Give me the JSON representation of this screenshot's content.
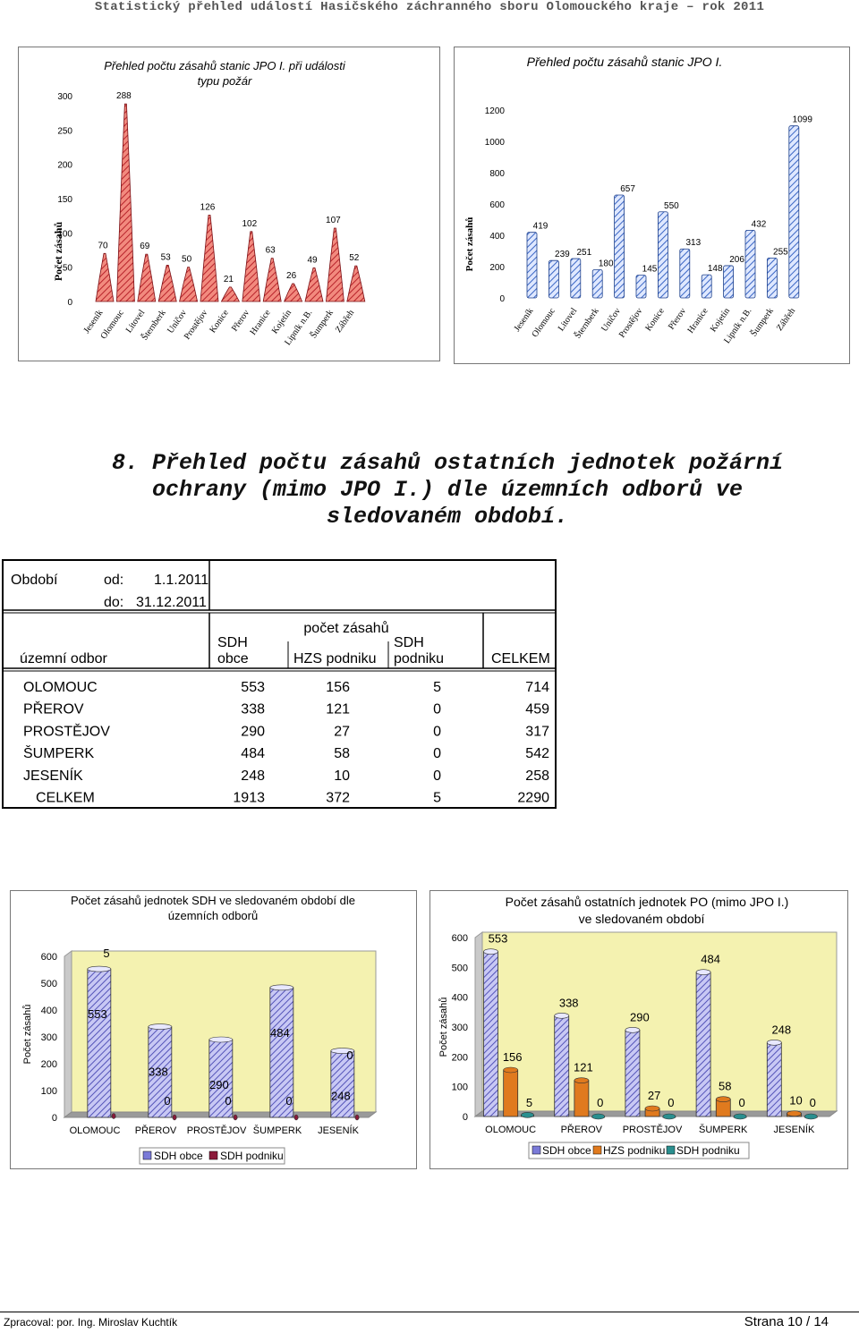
{
  "header": {
    "title": "Statistický přehled událostí Hasičského záchranného sboru Olomouckého kraje – rok 2011"
  },
  "chart1": {
    "title_line1": "Přehled počtu zásahů stanic JPO I. při události",
    "title_line2": "typu požár",
    "ylabel": "Počet zásahů",
    "chart_data": {
      "type": "bar",
      "title": "Přehled počtu zásahů stanic JPO I. při události typu požár",
      "ylabel": "Počet zásahů",
      "categories": [
        "Jeseník",
        "Olomouc",
        "Litovel",
        "Šternberk",
        "Uničov",
        "Prostějov",
        "Konice",
        "Přerov",
        "Hranice",
        "Kojetín",
        "Lipník n.B.",
        "Šumperk",
        "Zábřeh"
      ],
      "values": [
        70,
        288,
        69,
        53,
        50,
        126,
        21,
        102,
        63,
        26,
        49,
        107,
        52
      ],
      "ylim": [
        0,
        300
      ],
      "yticks": [
        0,
        50,
        100,
        150,
        200,
        250,
        300
      ]
    }
  },
  "chart2": {
    "title": "Přehled počtu zásahů stanic JPO I.",
    "ylabel": "Počet zásahů",
    "chart_data": {
      "type": "bar",
      "title": "Přehled počtu zásahů stanic JPO I.",
      "ylabel": "Počet zásahů",
      "categories": [
        "Jeseník",
        "Olomouc",
        "Litovel",
        "Šternberk",
        "Uničov",
        "Prostějov",
        "Konice",
        "Přerov",
        "Hranice",
        "Kojetín",
        "Lipník n.B.",
        "Šumperk",
        "Zábřeh"
      ],
      "values": [
        419,
        239,
        251,
        180,
        657,
        145,
        550,
        313,
        148,
        206,
        432,
        255,
        1099
      ],
      "ylim": [
        0,
        1200
      ],
      "yticks": [
        0,
        200,
        400,
        600,
        800,
        1000,
        1200
      ]
    }
  },
  "section": {
    "heading": "8. Přehled počtu zásahů ostatních jednotek požární ochrany (mimo JPO I.) dle územních odborů ve sledovaném období."
  },
  "table": {
    "period_label": "Období",
    "from_label": "od:",
    "from_value": "1.1.2011",
    "to_label": "do:",
    "to_value": "31.12.2011",
    "group_header": "počet zásahů",
    "col_region": "územní odbor",
    "col_sdh_obce_1": "SDH",
    "col_sdh_obce_2": "obce",
    "col_hzs": "HZS podniku",
    "col_sdh_pod_1": "SDH",
    "col_sdh_pod_2": "podniku",
    "col_total": "CELKEM",
    "rows": [
      {
        "region": "OLOMOUC",
        "sdh_obce": "553",
        "hzs": "156",
        "sdh_podniku": "5",
        "total": "714"
      },
      {
        "region": "PŘEROV",
        "sdh_obce": "338",
        "hzs": "121",
        "sdh_podniku": "0",
        "total": "459"
      },
      {
        "region": "PROSTĚJOV",
        "sdh_obce": "290",
        "hzs": "27",
        "sdh_podniku": "0",
        "total": "317"
      },
      {
        "region": "ŠUMPERK",
        "sdh_obce": "484",
        "hzs": "58",
        "sdh_podniku": "0",
        "total": "542"
      },
      {
        "region": "JESENÍK",
        "sdh_obce": "248",
        "hzs": "10",
        "sdh_podniku": "0",
        "total": "258"
      },
      {
        "region": "CELKEM",
        "sdh_obce": "1913",
        "hzs": "372",
        "sdh_podniku": "5",
        "total": "2290"
      }
    ]
  },
  "chart3": {
    "title_line1": "Počet zásahů jednotek SDH ve sledovaném období dle",
    "title_line2": "územních odborů",
    "ylabel": "Počet zásahů",
    "legend": [
      "SDH obce",
      "SDH podniku"
    ],
    "chart_data": {
      "type": "bar",
      "title": "Počet zásahů jednotek SDH ve sledovaném období dle územních odborů",
      "ylabel": "Počet zásahů",
      "categories": [
        "OLOMOUC",
        "PŘEROV",
        "PROSTĚJOV",
        "ŠUMPERK",
        "JESENÍK"
      ],
      "series": [
        {
          "name": "SDH obce",
          "values": [
            553,
            338,
            290,
            484,
            248
          ]
        },
        {
          "name": "SDH podniku",
          "values": [
            5,
            0,
            0,
            0,
            0
          ]
        }
      ],
      "ylim": [
        0,
        600
      ],
      "yticks": [
        0,
        100,
        200,
        300,
        400,
        500,
        600
      ],
      "legend": "bottom"
    }
  },
  "chart4": {
    "title_line1": "Počet zásahů ostatních jednotek PO (mimo JPO I.)",
    "title_line2": "ve sledovaném období",
    "ylabel": "Počet zásahů",
    "legend": [
      "SDH obce",
      "HZS podniku",
      "SDH podniku"
    ],
    "chart_data": {
      "type": "bar",
      "title": "Počet zásahů ostatních jednotek PO (mimo JPO I.) ve sledovaném období",
      "ylabel": "Počet zásahů",
      "categories": [
        "OLOMOUC",
        "PŘEROV",
        "PROSTĚJOV",
        "ŠUMPERK",
        "JESENÍK"
      ],
      "series": [
        {
          "name": "SDH obce",
          "values": [
            553,
            338,
            290,
            484,
            248
          ]
        },
        {
          "name": "HZS podniku",
          "values": [
            156,
            121,
            27,
            58,
            10
          ]
        },
        {
          "name": "SDH podniku",
          "values": [
            5,
            0,
            0,
            0,
            0
          ]
        }
      ],
      "ylim": [
        0,
        600
      ],
      "yticks": [
        0,
        100,
        200,
        300,
        400,
        500,
        600
      ],
      "legend": "bottom"
    }
  },
  "footer": {
    "prepared_by": "Zpracoval: por. Ing. Miroslav Kuchtík",
    "page": "Strana 10 / 14"
  },
  "colors": {
    "red_fill": "#e8564e",
    "violet_fill": "#7a7ad8",
    "orange_fill": "#e07a1e",
    "teal_fill": "#2a8f8f",
    "wall_yellow": "#f4f2b0",
    "dark_red": "#8b1a3a"
  }
}
